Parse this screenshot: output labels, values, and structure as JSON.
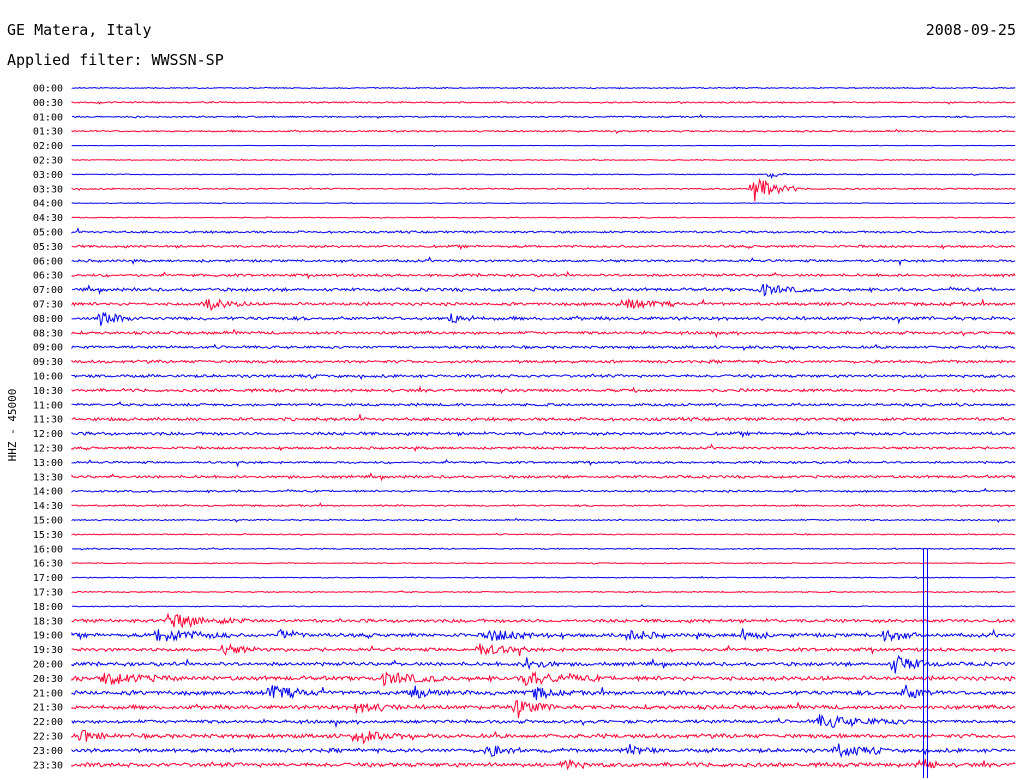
{
  "header": {
    "station": "GE Matera, Italy",
    "date": "2008-09-25",
    "filter": "Applied filter: WWSSN-SP"
  },
  "colors": {
    "trace_a": "#0000ee",
    "trace_b": "#ff0033"
  },
  "chart_data": {
    "type": "line",
    "ylabel": "HHZ - 45000",
    "categories": [
      "00:00",
      "00:30",
      "01:00",
      "01:30",
      "02:00",
      "02:30",
      "03:00",
      "03:30",
      "04:00",
      "04:30",
      "05:00",
      "05:30",
      "06:00",
      "06:30",
      "07:00",
      "07:30",
      "08:00",
      "08:30",
      "09:00",
      "09:30",
      "10:00",
      "10:30",
      "11:00",
      "11:30",
      "12:00",
      "12:30",
      "13:00",
      "13:30",
      "14:00",
      "14:30",
      "15:00",
      "15:30",
      "16:00",
      "16:30",
      "17:00",
      "17:30",
      "18:00",
      "18:30",
      "19:00",
      "19:30",
      "20:00",
      "20:30",
      "21:00",
      "21:30",
      "22:00",
      "22:30",
      "23:00",
      "23:30"
    ],
    "series_colors": [
      "trace_a",
      "trace_b"
    ],
    "noise_level": [
      0.5,
      0.6,
      0.6,
      0.7,
      0.2,
      0.4,
      0.4,
      0.6,
      0.3,
      0.4,
      0.9,
      1.0,
      1.0,
      1.1,
      1.3,
      1.3,
      1.4,
      1.2,
      1.1,
      1.2,
      1.2,
      1.2,
      1.1,
      1.3,
      1.3,
      1.0,
      0.9,
      1.1,
      0.8,
      0.7,
      0.6,
      0.5,
      0.5,
      0.4,
      0.4,
      0.5,
      0.4,
      1.4,
      1.5,
      1.4,
      1.5,
      1.8,
      1.8,
      1.7,
      1.4,
      1.7,
      1.6,
      1.7
    ],
    "events": [
      {
        "row": 7,
        "x": 0.72,
        "amp": 14,
        "dur": 0.05
      },
      {
        "row": 6,
        "x": 0.74,
        "amp": 4,
        "dur": 0.02
      },
      {
        "row": 15,
        "x": 0.14,
        "amp": 6,
        "dur": 0.05
      },
      {
        "row": 15,
        "x": 0.58,
        "amp": 6,
        "dur": 0.06
      },
      {
        "row": 14,
        "x": 0.73,
        "amp": 6,
        "dur": 0.05
      },
      {
        "row": 16,
        "x": 0.03,
        "amp": 6,
        "dur": 0.04
      },
      {
        "row": 16,
        "x": 0.4,
        "amp": 6,
        "dur": 0.03
      },
      {
        "row": 37,
        "x": 0.1,
        "amp": 7,
        "dur": 0.09
      },
      {
        "row": 38,
        "x": 0.09,
        "amp": 7,
        "dur": 0.08
      },
      {
        "row": 38,
        "x": 0.22,
        "amp": 7,
        "dur": 0.03
      },
      {
        "row": 38,
        "x": 0.44,
        "amp": 6,
        "dur": 0.07
      },
      {
        "row": 38,
        "x": 0.59,
        "amp": 6,
        "dur": 0.04
      },
      {
        "row": 38,
        "x": 0.71,
        "amp": 6,
        "dur": 0.03
      },
      {
        "row": 38,
        "x": 0.86,
        "amp": 7,
        "dur": 0.04
      },
      {
        "row": 39,
        "x": 0.43,
        "amp": 6,
        "dur": 0.06
      },
      {
        "row": 39,
        "x": 0.16,
        "amp": 6,
        "dur": 0.04
      },
      {
        "row": 40,
        "x": 0.87,
        "amp": 9,
        "dur": 0.05
      },
      {
        "row": 40,
        "x": 0.48,
        "amp": 6,
        "dur": 0.04
      },
      {
        "row": 41,
        "x": 0.03,
        "amp": 6,
        "dur": 0.08
      },
      {
        "row": 41,
        "x": 0.33,
        "amp": 6,
        "dur": 0.07
      },
      {
        "row": 41,
        "x": 0.48,
        "amp": 6,
        "dur": 0.08
      },
      {
        "row": 42,
        "x": 0.21,
        "amp": 7,
        "dur": 0.05
      },
      {
        "row": 42,
        "x": 0.36,
        "amp": 7,
        "dur": 0.03
      },
      {
        "row": 42,
        "x": 0.49,
        "amp": 7,
        "dur": 0.03
      },
      {
        "row": 42,
        "x": 0.88,
        "amp": 7,
        "dur": 0.04
      },
      {
        "row": 43,
        "x": 0.47,
        "amp": 7,
        "dur": 0.05
      },
      {
        "row": 43,
        "x": 0.3,
        "amp": 6,
        "dur": 0.05
      },
      {
        "row": 44,
        "x": 0.79,
        "amp": 6,
        "dur": 0.1
      },
      {
        "row": 45,
        "x": 0.01,
        "amp": 6,
        "dur": 0.03
      },
      {
        "row": 45,
        "x": 0.3,
        "amp": 6,
        "dur": 0.05
      },
      {
        "row": 46,
        "x": 0.44,
        "amp": 6,
        "dur": 0.04
      },
      {
        "row": 46,
        "x": 0.59,
        "amp": 6,
        "dur": 0.03
      },
      {
        "row": 46,
        "x": 0.81,
        "amp": 7,
        "dur": 0.05
      },
      {
        "row": 47,
        "x": 0.52,
        "amp": 6,
        "dur": 0.03
      },
      {
        "row": 47,
        "x": 0.9,
        "amp": 7,
        "dur": 0.02
      }
    ],
    "spike": {
      "from_row": 32,
      "to_row": 47,
      "x": 0.902
    }
  }
}
